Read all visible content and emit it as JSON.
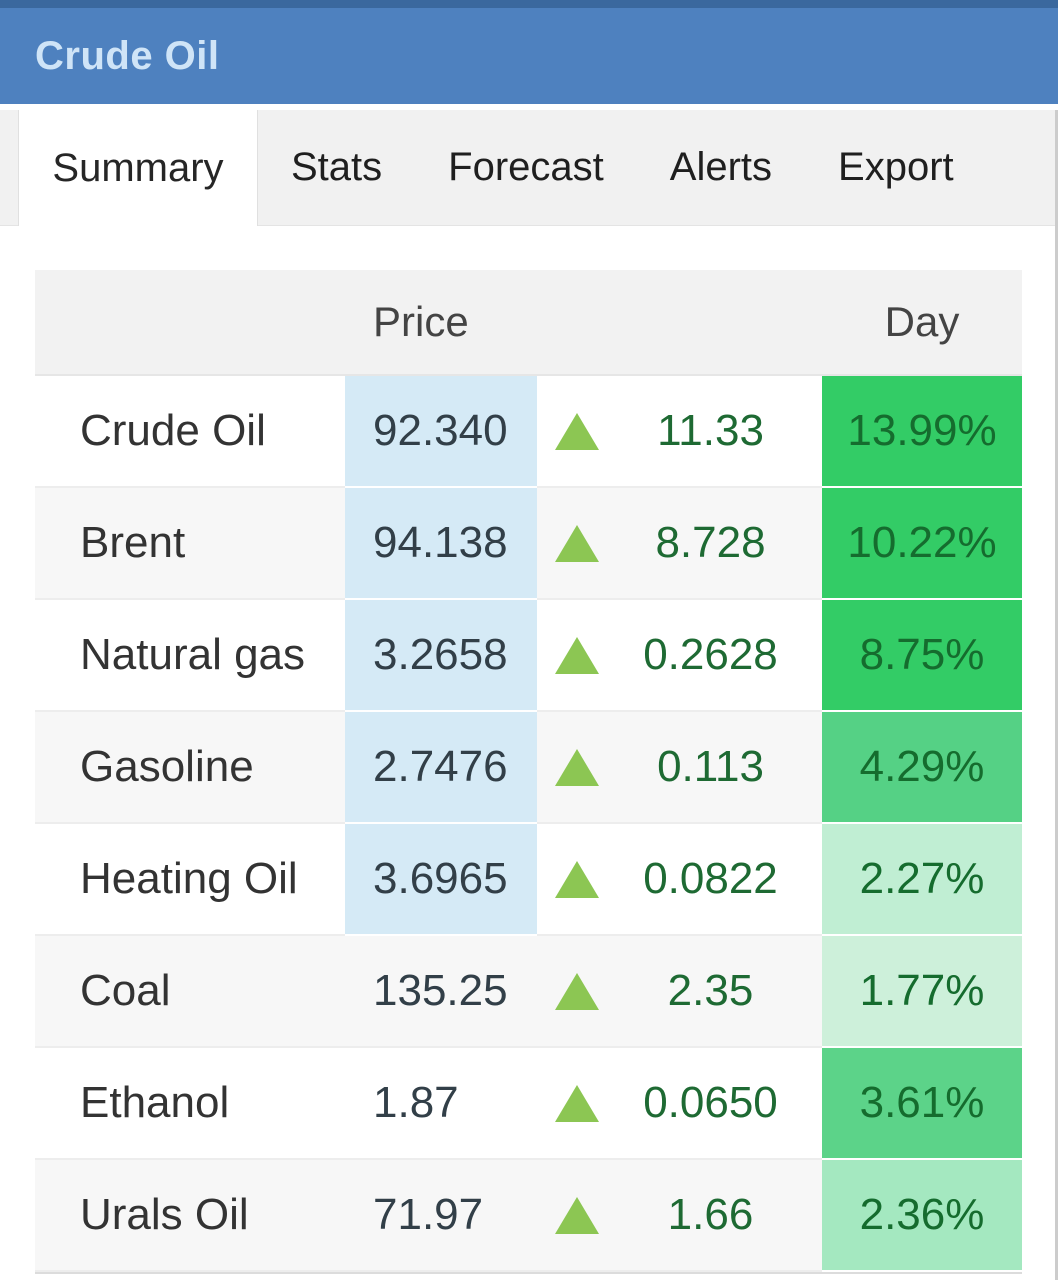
{
  "header": {
    "title": "Crude Oil"
  },
  "tabs": [
    {
      "label": "Summary",
      "active": true
    },
    {
      "label": "Stats",
      "active": false
    },
    {
      "label": "Forecast",
      "active": false
    },
    {
      "label": "Alerts",
      "active": false
    },
    {
      "label": "Export",
      "active": false
    }
  ],
  "table": {
    "headers": {
      "price": "Price",
      "day": "Day"
    },
    "rows": [
      {
        "name": "Crude Oil",
        "price": "92.340",
        "price_highlighted": true,
        "direction": "up",
        "change": "11.33",
        "day": "13.99%",
        "day_bg": "#33cc66"
      },
      {
        "name": "Brent",
        "price": "94.138",
        "price_highlighted": true,
        "direction": "up",
        "change": "8.728",
        "day": "10.22%",
        "day_bg": "#33cc66"
      },
      {
        "name": "Natural gas",
        "price": "3.2658",
        "price_highlighted": true,
        "direction": "up",
        "change": "0.2628",
        "day": "8.75%",
        "day_bg": "#33cc66"
      },
      {
        "name": "Gasoline",
        "price": "2.7476",
        "price_highlighted": true,
        "direction": "up",
        "change": "0.113",
        "day": "4.29%",
        "day_bg": "#55d185"
      },
      {
        "name": "Heating Oil",
        "price": "3.6965",
        "price_highlighted": true,
        "direction": "up",
        "change": "0.0822",
        "day": "2.27%",
        "day_bg": "#c0eed3"
      },
      {
        "name": "Coal",
        "price": "135.25",
        "price_highlighted": false,
        "direction": "up",
        "change": "2.35",
        "day": "1.77%",
        "day_bg": "#cdf0da"
      },
      {
        "name": "Ethanol",
        "price": "1.87",
        "price_highlighted": false,
        "direction": "up",
        "change": "0.0650",
        "day": "3.61%",
        "day_bg": "#5cd389"
      },
      {
        "name": "Urals Oil",
        "price": "71.97",
        "price_highlighted": false,
        "direction": "up",
        "change": "1.66",
        "day": "2.36%",
        "day_bg": "#a4e8c0"
      }
    ]
  },
  "colors": {
    "header_bg": "#4e81bf",
    "header_top_strip": "#3a689e",
    "title_color": "#cfe4f7",
    "tabbar_bg": "#f1f1f1",
    "active_tab_bg": "#ffffff",
    "table_header_bg": "#f2f2f2",
    "row_stripe": "#f7f7f7",
    "price_highlight_bg": "#d5eaf6",
    "up_arrow_color": "#8cc653",
    "change_text_color": "#1e6a33",
    "day_text_color": "#156c2e"
  }
}
